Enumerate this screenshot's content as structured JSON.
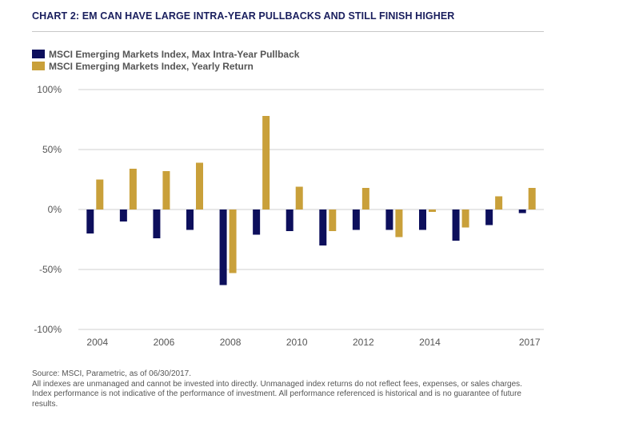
{
  "title": "CHART 2: EM CAN HAVE LARGE INTRA-YEAR PULLBACKS AND STILL FINISH HIGHER",
  "legend": [
    {
      "label": "MSCI Emerging Markets Index, Max Intra-Year Pullback",
      "color": "#0d0f5c"
    },
    {
      "label": "MSCI Emerging Markets Index, Yearly Return",
      "color": "#c9a03a"
    }
  ],
  "chart_data": {
    "type": "bar",
    "categories": [
      "2004",
      "2005",
      "2006",
      "2007",
      "2008",
      "2009",
      "2010",
      "2011",
      "2012",
      "2013",
      "2014",
      "2015",
      "2016",
      "2017"
    ],
    "x_tick_labels": [
      "2004",
      "2006",
      "2008",
      "2010",
      "2012",
      "2014",
      "2017"
    ],
    "y_tick_labels": [
      "100%",
      "50%",
      "0%",
      "-50%",
      "-100%"
    ],
    "y_ticks": [
      100,
      50,
      0,
      -50,
      -100
    ],
    "ylim": [
      -100,
      100
    ],
    "grid": true,
    "legend_position": "top-left",
    "series": [
      {
        "name": "MSCI Emerging Markets Index, Max Intra-Year Pullback",
        "color": "#0d0f5c",
        "values": [
          -20,
          -10,
          -24,
          -17,
          -63,
          -21,
          -18,
          -30,
          -17,
          -17,
          -17,
          -26,
          -13,
          -3
        ]
      },
      {
        "name": "MSCI Emerging Markets Index, Yearly Return",
        "color": "#c9a03a",
        "values": [
          25,
          34,
          32,
          39,
          -53,
          78,
          19,
          -18,
          18,
          -23,
          -2,
          -15,
          11,
          18
        ]
      }
    ]
  },
  "footnote": {
    "source": "Source: MSCI, Parametric, as of 06/30/2017.",
    "disclaimer": "All indexes are unmanaged and cannot be invested into directly. Unmanaged index returns do not reflect fees, expenses, or sales charges. Index performance is not indicative of the performance of investment. All performance referenced is historical and is no guarantee of future results."
  }
}
